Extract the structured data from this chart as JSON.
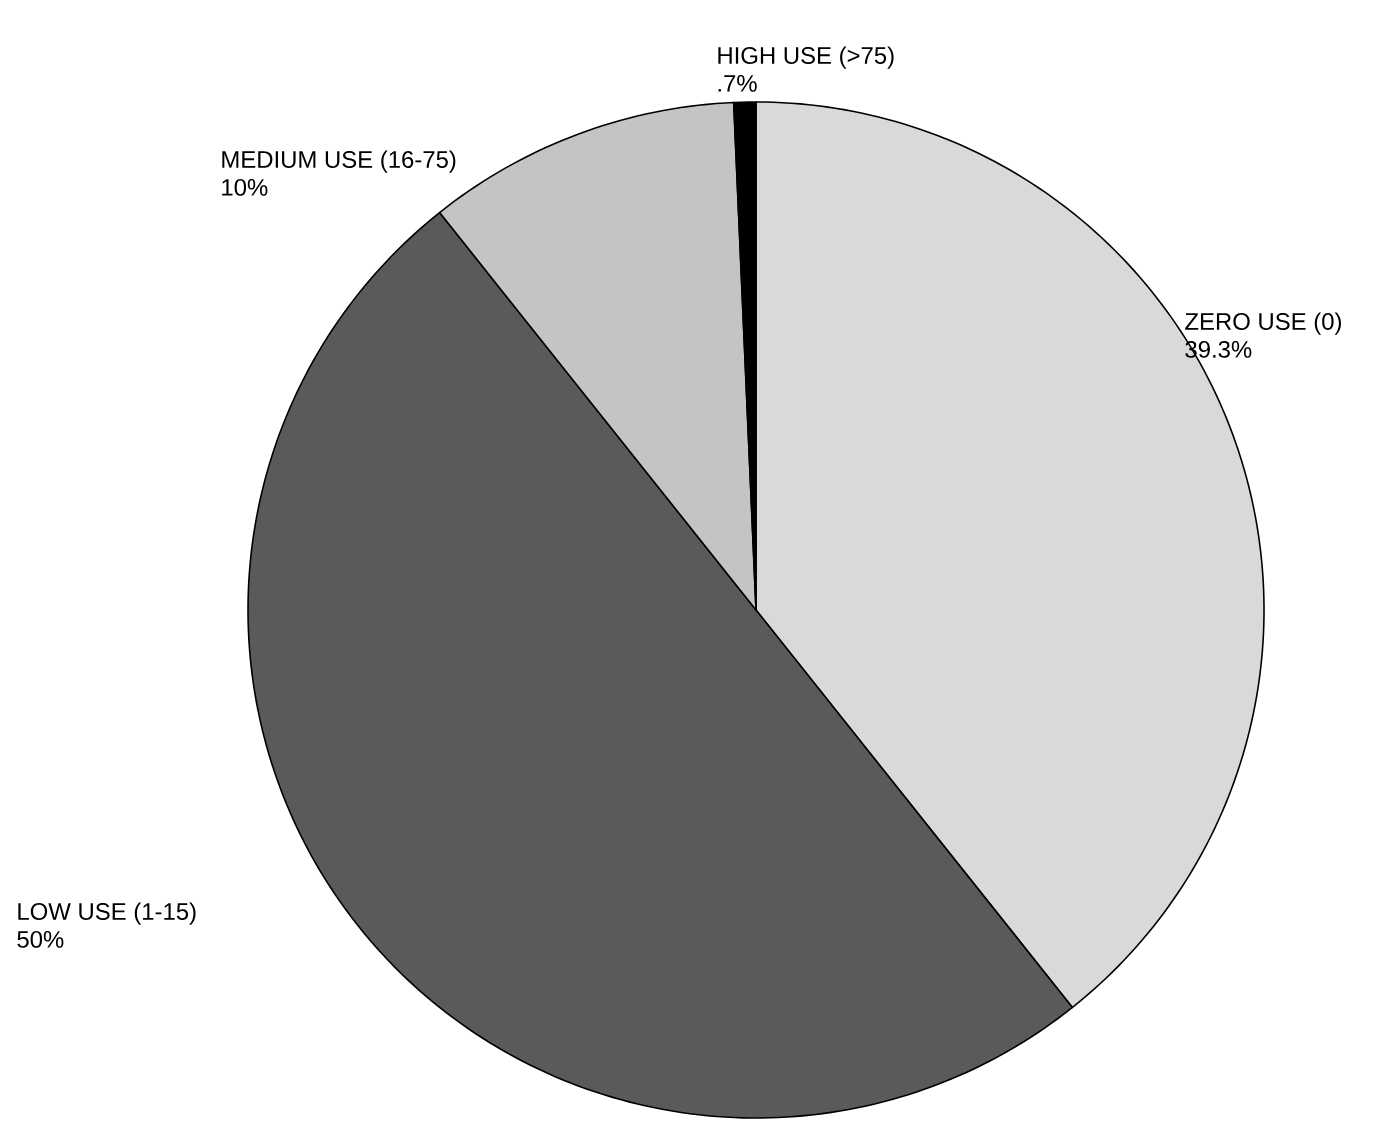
{
  "chart_data": {
    "type": "pie",
    "categories": [
      "ZERO USE (0)",
      "LOW USE (1-15)",
      "MEDIUM USE (16-75)",
      "HIGH USE (>75)"
    ],
    "values": [
      39.3,
      50,
      10,
      0.7
    ],
    "value_labels": [
      "39.3%",
      "50%",
      "10%",
      ".7%"
    ],
    "colors": [
      "#d9d9d9",
      "#5a5a5a",
      "#c4c4c4",
      "#000000"
    ]
  }
}
